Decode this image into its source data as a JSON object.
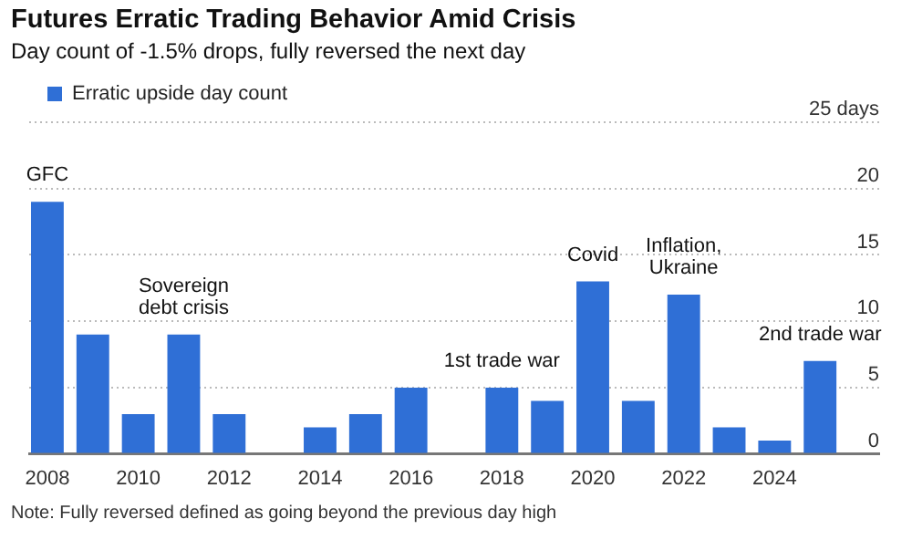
{
  "chart_data": {
    "type": "bar",
    "title": "Futures Erratic Trading Behavior Amid Crisis",
    "subtitle": "Day count of -1.5% drops, fully reversed the next day",
    "x": [
      2008,
      2009,
      2010,
      2011,
      2012,
      2013,
      2014,
      2015,
      2016,
      2017,
      2018,
      2019,
      2020,
      2021,
      2022,
      2023,
      2024,
      2025
    ],
    "series": [
      {
        "name": "Erratic upside day count",
        "color": "#2f6fd6",
        "values": [
          19,
          9,
          3,
          9,
          3,
          0,
          2,
          3,
          5,
          0,
          5,
          4,
          13,
          4,
          12,
          2,
          1,
          7
        ]
      }
    ],
    "xlim": [
      2007.6,
      2026.3
    ],
    "xticks": [
      2008,
      2010,
      2012,
      2014,
      2016,
      2018,
      2020,
      2022,
      2024
    ],
    "ylim": [
      0,
      25
    ],
    "yticks": [
      0,
      5,
      10,
      15,
      20,
      {
        "value": 25,
        "label": "25 days"
      }
    ],
    "grid": "y",
    "legend": "top left",
    "annotations": [
      {
        "text": "GFC",
        "x": 2008,
        "y": 19
      },
      {
        "text": "Sovereign\ndebt crisis",
        "x": 2011,
        "y": 9
      },
      {
        "text": "1st trade war",
        "x": 2018,
        "y": 5
      },
      {
        "text": "Covid",
        "x": 2020,
        "y": 13
      },
      {
        "text": "Inflation,\nUkraine",
        "x": 2022,
        "y": 12
      },
      {
        "text": "2nd trade war",
        "x": 2025,
        "y": 7
      },
      "Note: Fully reversed defined as going beyond the previous day high"
    ]
  }
}
